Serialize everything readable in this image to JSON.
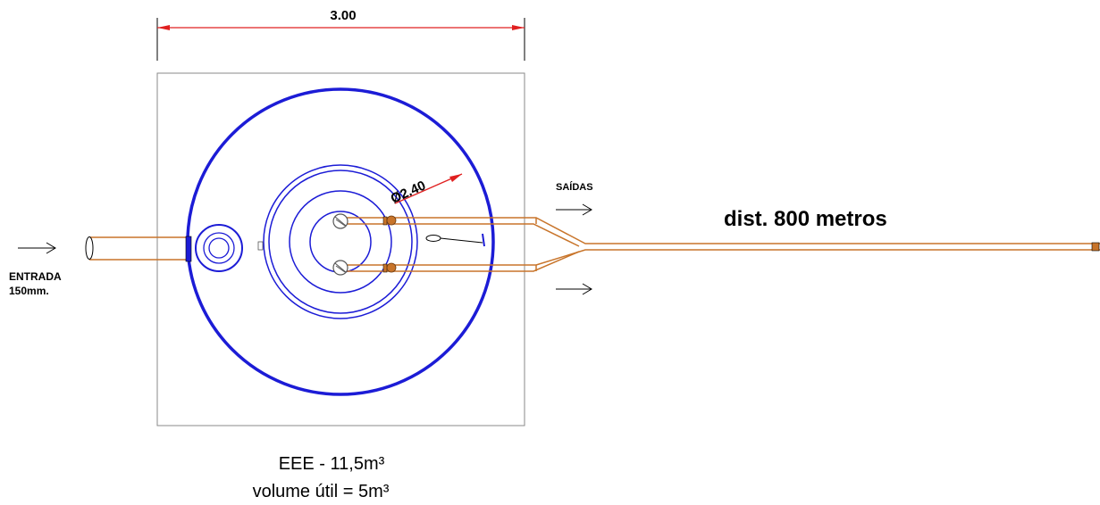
{
  "dimension": {
    "width_label": "3.00",
    "diameter_label": "Ø2.40"
  },
  "inlet": {
    "label_line1": "ENTRADA",
    "label_line2": "150mm."
  },
  "outlet": {
    "label": "SAÍDAS"
  },
  "distance": {
    "label": "dist. 800 metros"
  },
  "caption": {
    "line1": "EEE - 11,5m³",
    "line2": "volume útil = 5m³"
  },
  "colors": {
    "circle": "#1c1cd6",
    "pipe": "#c8742a",
    "dimension": "#e02020",
    "line": "#000000",
    "box": "#8a8a8a"
  }
}
